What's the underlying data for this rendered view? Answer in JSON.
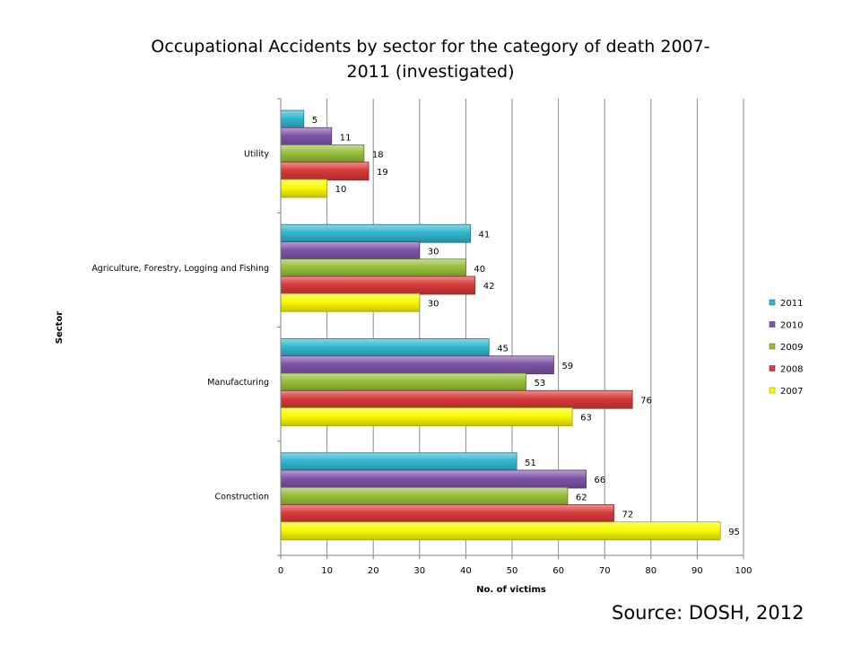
{
  "title": {
    "line1": "Occupational Accidents by sector for the category of death 2007-",
    "line2": "2011 (investigated)"
  },
  "source": "Source: DOSH, 2012",
  "colors": {
    "2011": "#31B6CF",
    "2010": "#7D55A8",
    "2009": "#96BE3A",
    "2008": "#D93A3A",
    "2007": "#FAFA00",
    "gridline": "#8C8C8C",
    "axis": "#7F7F7F"
  },
  "chart_data": {
    "type": "bar",
    "orientation": "horizontal",
    "title": "Occupational Accidents by sector for the category of death 2007-2011 (investigated)",
    "xlabel": "No. of victims",
    "ylabel": "Sector",
    "xlim": [
      0,
      100
    ],
    "xticks": [
      0,
      10,
      20,
      30,
      40,
      50,
      60,
      70,
      80,
      90,
      100
    ],
    "grid": true,
    "legend_position": "right",
    "categories": [
      "Utility",
      "Agriculture, Forestry, Logging and Fishing",
      "Manufacturing",
      "Construction"
    ],
    "series": [
      {
        "name": "2011",
        "values": [
          5,
          41,
          45,
          51
        ]
      },
      {
        "name": "2010",
        "values": [
          11,
          30,
          59,
          66
        ]
      },
      {
        "name": "2009",
        "values": [
          18,
          40,
          53,
          62
        ]
      },
      {
        "name": "2008",
        "values": [
          19,
          42,
          76,
          72
        ]
      },
      {
        "name": "2007",
        "values": [
          10,
          30,
          63,
          95
        ]
      }
    ]
  }
}
